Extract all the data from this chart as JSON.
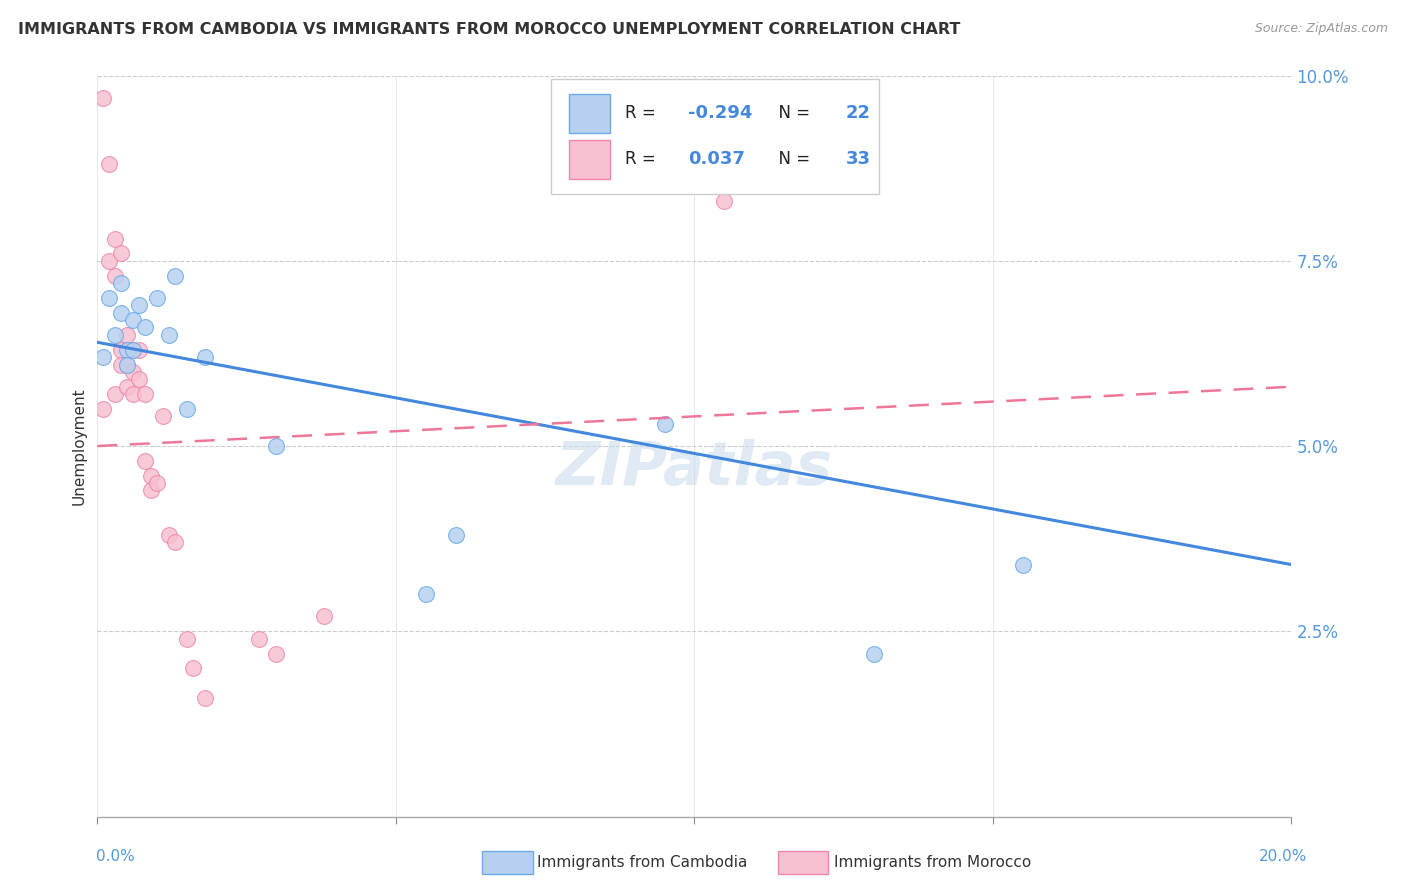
{
  "title": "IMMIGRANTS FROM CAMBODIA VS IMMIGRANTS FROM MOROCCO UNEMPLOYMENT CORRELATION CHART",
  "source": "Source: ZipAtlas.com",
  "ylabel": "Unemployment",
  "xlim": [
    0,
    0.2
  ],
  "ylim": [
    0,
    0.1
  ],
  "yticks": [
    0.025,
    0.05,
    0.075,
    0.1
  ],
  "ytick_labels": [
    "2.5%",
    "5.0%",
    "7.5%",
    "10.0%"
  ],
  "cambodia_color": "#b8d0f0",
  "morocco_color": "#f7c0d0",
  "cambodia_edge_color": "#6aaae8",
  "morocco_edge_color": "#ee88aa",
  "cambodia_line_color": "#4488dd",
  "morocco_line_color": "#ee7799",
  "cambodia_R": -0.294,
  "cambodia_N": 22,
  "morocco_R": 0.037,
  "morocco_N": 33,
  "legend_label_cambodia": "Immigrants from Cambodia",
  "legend_label_morocco": "Immigrants from Morocco",
  "watermark": "ZIPatlas",
  "cambodia_x": [
    0.001,
    0.002,
    0.003,
    0.004,
    0.004,
    0.005,
    0.005,
    0.006,
    0.006,
    0.007,
    0.008,
    0.01,
    0.012,
    0.013,
    0.015,
    0.018,
    0.03,
    0.055,
    0.06,
    0.095,
    0.13,
    0.155
  ],
  "cambodia_y": [
    0.062,
    0.07,
    0.065,
    0.068,
    0.072,
    0.063,
    0.061,
    0.067,
    0.063,
    0.069,
    0.066,
    0.07,
    0.065,
    0.073,
    0.055,
    0.062,
    0.05,
    0.03,
    0.038,
    0.053,
    0.022,
    0.034
  ],
  "morocco_x": [
    0.001,
    0.001,
    0.002,
    0.002,
    0.003,
    0.003,
    0.003,
    0.004,
    0.004,
    0.004,
    0.005,
    0.005,
    0.005,
    0.006,
    0.006,
    0.006,
    0.007,
    0.007,
    0.008,
    0.008,
    0.009,
    0.009,
    0.01,
    0.011,
    0.012,
    0.013,
    0.015,
    0.016,
    0.018,
    0.027,
    0.03,
    0.038,
    0.105
  ],
  "morocco_y": [
    0.097,
    0.055,
    0.088,
    0.075,
    0.078,
    0.073,
    0.057,
    0.076,
    0.063,
    0.061,
    0.065,
    0.061,
    0.058,
    0.063,
    0.06,
    0.057,
    0.063,
    0.059,
    0.057,
    0.048,
    0.046,
    0.044,
    0.045,
    0.054,
    0.038,
    0.037,
    0.024,
    0.02,
    0.016,
    0.024,
    0.022,
    0.027,
    0.083
  ],
  "cam_line_x0": 0.0,
  "cam_line_y0": 0.064,
  "cam_line_x1": 0.2,
  "cam_line_y1": 0.034,
  "mor_line_x0": 0.0,
  "mor_line_y0": 0.05,
  "mor_line_x1": 0.2,
  "mor_line_y1": 0.058,
  "mor_line_ext_x1": 0.2,
  "mor_line_ext_y1": 0.058
}
